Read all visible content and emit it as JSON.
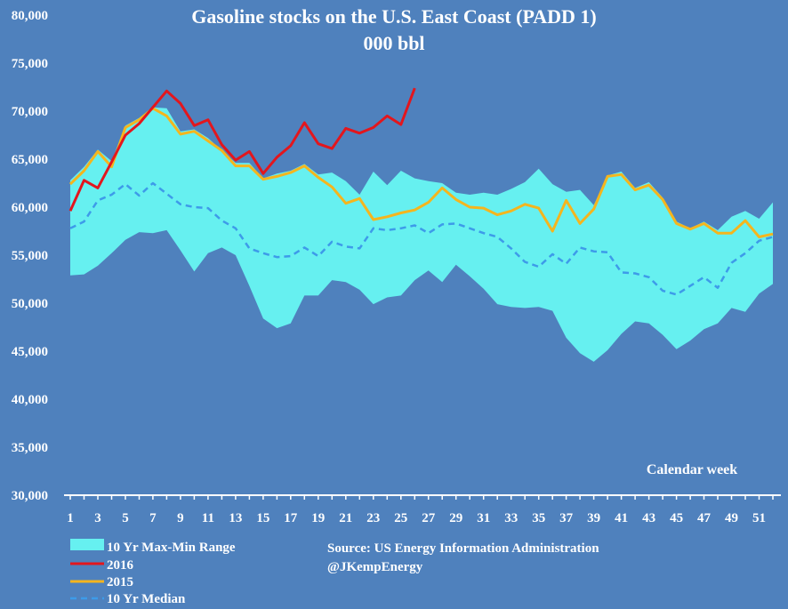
{
  "chart_data": {
    "type": "area",
    "title": "Gasoline stocks on the U.S. East Coast (PADD 1)",
    "subtitle": "000 bbl",
    "xlabel": "Calendar week",
    "ylim": [
      30000,
      80000
    ],
    "xlim": [
      1,
      52
    ],
    "y_ticks": [
      "30,000",
      "35,000",
      "40,000",
      "45,000",
      "50,000",
      "55,000",
      "60,000",
      "65,000",
      "70,000",
      "75,000",
      "80,000"
    ],
    "x_ticks": [
      "1",
      "3",
      "5",
      "7",
      "9",
      "11",
      "13",
      "15",
      "17",
      "19",
      "21",
      "23",
      "25",
      "27",
      "29",
      "31",
      "33",
      "35",
      "37",
      "39",
      "41",
      "43",
      "45",
      "47",
      "49",
      "51"
    ],
    "grid": false,
    "legend_position": "bottom-left",
    "colors": {
      "background": "#4f81bd",
      "range": "#66f0f0",
      "y2016": "#e3161d",
      "y2015": "#f5b51d",
      "median": "#3d9be9"
    },
    "series": [
      {
        "name": "10 Yr Max-Min Range",
        "type": "band",
        "x": [
          1,
          2,
          3,
          4,
          5,
          6,
          7,
          8,
          9,
          10,
          11,
          12,
          13,
          14,
          15,
          16,
          17,
          18,
          19,
          20,
          21,
          22,
          23,
          24,
          25,
          26,
          27,
          28,
          29,
          30,
          31,
          32,
          33,
          34,
          35,
          36,
          37,
          38,
          39,
          40,
          41,
          42,
          43,
          44,
          45,
          46,
          47,
          48,
          49,
          50,
          51,
          52
        ],
        "max": [
          62800,
          64200,
          66000,
          64800,
          68500,
          69300,
          70400,
          70300,
          67900,
          68100,
          67200,
          65900,
          64600,
          64600,
          63000,
          63500,
          63800,
          64500,
          63400,
          63600,
          62700,
          61300,
          63700,
          62300,
          63800,
          63000,
          62700,
          62500,
          61500,
          61300,
          61500,
          61300,
          61900,
          62600,
          64000,
          62400,
          61600,
          61800,
          60200,
          63300,
          63700,
          62000,
          62600,
          61000,
          58500,
          57800,
          58500,
          57600,
          59000,
          59600,
          58800,
          60500
        ],
        "min": [
          52900,
          53000,
          53900,
          55200,
          56600,
          57400,
          57300,
          57600,
          55500,
          53300,
          55200,
          55800,
          55000,
          51800,
          48400,
          47400,
          47900,
          50800,
          50800,
          52400,
          52200,
          51400,
          49900,
          50600,
          50800,
          52400,
          53400,
          52200,
          54000,
          52800,
          51500,
          49900,
          49600,
          49500,
          49600,
          49200,
          46400,
          44800,
          43900,
          45100,
          46800,
          48100,
          47900,
          46700,
          45200,
          46100,
          47300,
          47900,
          49500,
          49100,
          51000,
          52000
        ]
      },
      {
        "name": "2016",
        "x": [
          1,
          2,
          3,
          4,
          5,
          6,
          7,
          8,
          9,
          10,
          11,
          12,
          13,
          14,
          15,
          16,
          17,
          18,
          19,
          20,
          21,
          22,
          23,
          24,
          25,
          26
        ],
        "values": [
          59600,
          62800,
          62000,
          64700,
          67500,
          68700,
          70400,
          72100,
          70800,
          68500,
          69100,
          66500,
          64900,
          65800,
          63500,
          65200,
          66400,
          68800,
          66600,
          66100,
          68200,
          67700,
          68300,
          69500,
          68600,
          72400
        ]
      },
      {
        "name": "2015",
        "x": [
          1,
          2,
          3,
          4,
          5,
          6,
          7,
          8,
          9,
          10,
          11,
          12,
          13,
          14,
          15,
          16,
          17,
          18,
          19,
          20,
          21,
          22,
          23,
          24,
          25,
          26,
          27,
          28,
          29,
          30,
          31,
          32,
          33,
          34,
          35,
          36,
          37,
          38,
          39,
          40,
          41,
          42,
          43,
          44,
          45,
          46,
          47,
          48,
          49,
          50,
          51,
          52
        ],
        "values": [
          62400,
          63800,
          65800,
          64200,
          68300,
          69100,
          70300,
          69500,
          67600,
          67900,
          66900,
          65900,
          64300,
          64300,
          62900,
          63200,
          63600,
          64300,
          63100,
          62100,
          60400,
          60900,
          58700,
          59000,
          59400,
          59700,
          60500,
          62000,
          60800,
          60000,
          59900,
          59200,
          59600,
          60300,
          59900,
          57500,
          60700,
          58300,
          59800,
          63200,
          63400,
          61800,
          62300,
          60800,
          58300,
          57700,
          58300,
          57300,
          57300,
          58600,
          56900,
          57200
        ]
      },
      {
        "name": "10 Yr Median",
        "x": [
          1,
          2,
          3,
          4,
          5,
          6,
          7,
          8,
          9,
          10,
          11,
          12,
          13,
          14,
          15,
          16,
          17,
          18,
          19,
          20,
          21,
          22,
          23,
          24,
          25,
          26,
          27,
          28,
          29,
          30,
          31,
          32,
          33,
          34,
          35,
          36,
          37,
          38,
          39,
          40,
          41,
          42,
          43,
          44,
          45,
          46,
          47,
          48,
          49,
          50,
          51,
          52
        ],
        "values": [
          57800,
          58500,
          60700,
          61300,
          62400,
          61200,
          62500,
          61400,
          60300,
          60000,
          59900,
          58600,
          57800,
          55700,
          55200,
          54800,
          54900,
          55800,
          54900,
          56400,
          55900,
          55700,
          57800,
          57600,
          57800,
          58100,
          57300,
          58200,
          58300,
          57800,
          57300,
          56900,
          55700,
          54300,
          53800,
          55100,
          54100,
          55800,
          55400,
          55300,
          53200,
          53100,
          52700,
          51300,
          50900,
          51800,
          52700,
          51600,
          54200,
          55200,
          56500,
          56900
        ]
      }
    ],
    "annotations": [
      "Source: US Energy Information Administration",
      "@JKempEnergy"
    ]
  }
}
